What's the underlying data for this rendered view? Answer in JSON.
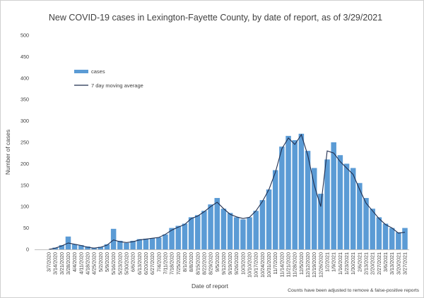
{
  "chart_data": {
    "type": "bar",
    "title": "New COVID-19 cases in Lexington-Fayette County, by date of report, as of 3/29/2021",
    "xlabel": "Date of report",
    "ylabel": "Number of cases",
    "note": "Counts have been adjusted to remove & false-positive reports",
    "ylim": [
      0,
      500
    ],
    "yticks": [
      "0",
      "50",
      "100",
      "150",
      "200",
      "250",
      "300",
      "350",
      "400",
      "450",
      "500"
    ],
    "xticks": [
      "3/7/2020",
      "3/14/2020",
      "3/21/2020",
      "3/28/2020",
      "4/4/2020",
      "4/11/2020",
      "4/18/2020",
      "4/25/2020",
      "5/2/2020",
      "5/9/2020",
      "5/16/2020",
      "5/23/2020",
      "5/30/2020",
      "6/6/2020",
      "6/13/2020",
      "6/20/2020",
      "6/27/2020",
      "7/4/2020",
      "7/11/2020",
      "7/18/2020",
      "7/25/2020",
      "8/1/2020",
      "8/8/2020",
      "8/15/2020",
      "8/22/2020",
      "8/29/2020",
      "9/5/2020",
      "9/12/2020",
      "9/19/2020",
      "9/26/2020",
      "10/3/2020",
      "10/10/2020",
      "10/17/2020",
      "10/24/2020",
      "10/31/2020",
      "11/7/2020",
      "11/14/2020",
      "11/21/2020",
      "11/28/2020",
      "12/5/2020",
      "12/12/2020",
      "12/19/2020",
      "12/26/2020",
      "1/2/2021",
      "1/9/2021",
      "1/16/2021",
      "1/23/2021",
      "1/30/2021",
      "2/6/2021",
      "2/13/2021",
      "2/20/2021",
      "2/27/2021",
      "3/6/2021",
      "3/13/2021",
      "3/20/2021",
      "3/27/2021"
    ],
    "grid": false,
    "legend_position": "top-left",
    "series": [
      {
        "name": "cases",
        "color": "#5b9bd5",
        "weekly_values": [
          0,
          4,
          10,
          30,
          12,
          10,
          7,
          4,
          6,
          12,
          48,
          20,
          15,
          20,
          24,
          25,
          26,
          28,
          35,
          50,
          55,
          60,
          75,
          80,
          90,
          105,
          120,
          95,
          85,
          75,
          70,
          75,
          90,
          115,
          140,
          185,
          240,
          265,
          255,
          270,
          230,
          190,
          130,
          210,
          250,
          220,
          200,
          190,
          155,
          120,
          95,
          75,
          60,
          50,
          40,
          50
        ]
      },
      {
        "name": "7 day moving average",
        "color": "#1f2d4e",
        "weekly_values": [
          0,
          3,
          8,
          15,
          12,
          9,
          5,
          3,
          5,
          10,
          22,
          18,
          16,
          18,
          22,
          24,
          26,
          28,
          35,
          45,
          52,
          58,
          72,
          78,
          88,
          100,
          110,
          95,
          82,
          76,
          72,
          75,
          90,
          112,
          140,
          180,
          235,
          260,
          245,
          268,
          220,
          150,
          100,
          230,
          225,
          205,
          190,
          175,
          140,
          108,
          90,
          72,
          58,
          50,
          38,
          40
        ]
      }
    ]
  }
}
